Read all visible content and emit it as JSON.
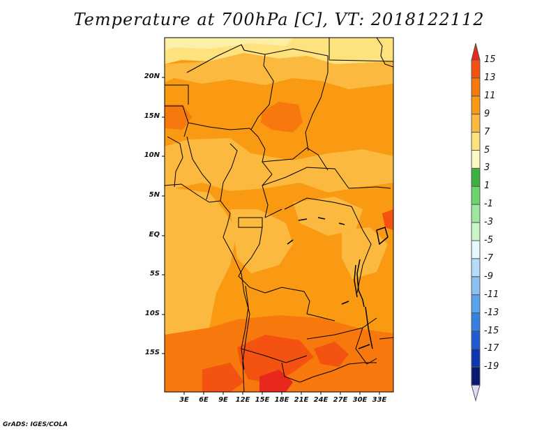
{
  "title": "Temperature at 700hPa [C], VT: 2018122112",
  "credit": "GrADS: IGES/COLA",
  "map": {
    "y_axis_labels": [
      "20N",
      "15N",
      "10N",
      "5N",
      "EQ",
      "5S",
      "10S",
      "15S"
    ],
    "x_axis_labels": [
      "3E",
      "6E",
      "9E",
      "12E",
      "15E",
      "18E",
      "21E",
      "24E",
      "27E",
      "30E",
      "33E"
    ]
  },
  "colorbar": {
    "labels": [
      "15",
      "13",
      "11",
      "9",
      "7",
      "5",
      "3",
      "1",
      "-1",
      "-3",
      "-5",
      "-7",
      "-9",
      "-11",
      "-13",
      "-15",
      "-17",
      "-19"
    ],
    "colors": [
      "#e8281a",
      "#f35210",
      "#f7780d",
      "#f99a12",
      "#fbb93f",
      "#fde27e",
      "#fcf8c4",
      "#3db03d",
      "#6bd56b",
      "#9de89d",
      "#c9f5c9",
      "#e6f8ff",
      "#b6dcf9",
      "#88c0f2",
      "#5aa3ec",
      "#3680e0",
      "#1f5ad2",
      "#0d36b0",
      "#0a1870",
      "#dcdcf8"
    ]
  }
}
